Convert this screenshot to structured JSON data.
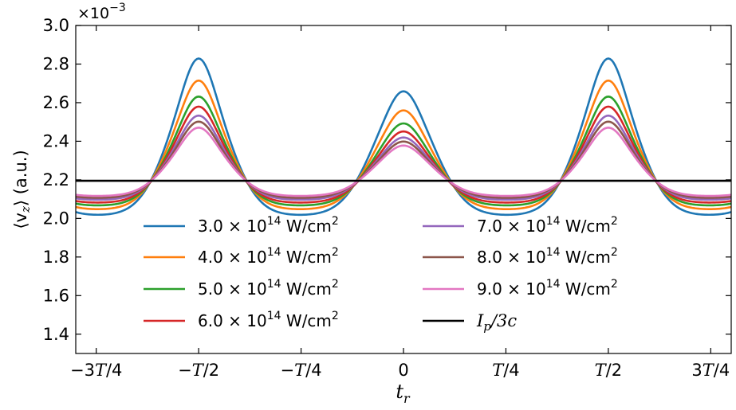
{
  "chart_data": {
    "type": "line",
    "xlabel": "t",
    "xlabel_sub": "r",
    "ylabel": "⟨v",
    "ylabel_sub": "z",
    "ylabel_suffix": "⟩ (a.u.)",
    "multiplier": "×10",
    "multiplier_exp": "−3",
    "xlim": [
      -0.8,
      0.8
    ],
    "ylim": [
      1.3,
      3.0
    ],
    "x_ticks": [
      {
        "value": -0.75,
        "label": "−3T/4"
      },
      {
        "value": -0.5,
        "label": "−T/2"
      },
      {
        "value": -0.25,
        "label": "−T/4"
      },
      {
        "value": 0,
        "label": "0"
      },
      {
        "value": 0.25,
        "label": "T/4"
      },
      {
        "value": 0.5,
        "label": "T/2"
      },
      {
        "value": 0.75,
        "label": "3T/4"
      }
    ],
    "y_ticks": [
      {
        "value": 1.4,
        "label": "1.4"
      },
      {
        "value": 1.6,
        "label": "1.6"
      },
      {
        "value": 1.8,
        "label": "1.8"
      },
      {
        "value": 2.0,
        "label": "2.0"
      },
      {
        "value": 2.2,
        "label": "2.2"
      },
      {
        "value": 2.4,
        "label": "2.4"
      },
      {
        "value": 2.6,
        "label": "2.6"
      },
      {
        "value": 2.8,
        "label": "2.8"
      },
      {
        "value": 3.0,
        "label": "3.0"
      }
    ],
    "grid": false,
    "legend_position": "lower-center",
    "baseline": {
      "name": "Ip/3c",
      "value": 2.195,
      "color": "#000000"
    },
    "series": [
      {
        "name": "3.0 × 10¹⁴ W/cm²",
        "color": "#1f77b4",
        "min": 2.015,
        "side_peak": 2.805,
        "center_peak": 2.64
      },
      {
        "name": "4.0 × 10¹⁴ W/cm²",
        "color": "#ff7f0e",
        "min": 2.045,
        "side_peak": 2.695,
        "center_peak": 2.545
      },
      {
        "name": "5.0 × 10¹⁴ W/cm²",
        "color": "#2ca02c",
        "min": 2.065,
        "side_peak": 2.615,
        "center_peak": 2.48
      },
      {
        "name": "6.0 × 10¹⁴ W/cm²",
        "color": "#d62728",
        "min": 2.08,
        "side_peak": 2.565,
        "center_peak": 2.44
      },
      {
        "name": "7.0 × 10¹⁴ W/cm²",
        "color": "#9467bd",
        "min": 2.095,
        "side_peak": 2.52,
        "center_peak": 2.41
      },
      {
        "name": "8.0 × 10¹⁴ W/cm²",
        "color": "#8c564b",
        "min": 2.105,
        "side_peak": 2.49,
        "center_peak": 2.39
      },
      {
        "name": "9.0 × 10¹⁴ W/cm²",
        "color": "#e377c2",
        "min": 2.115,
        "side_peak": 2.46,
        "center_peak": 2.37
      }
    ],
    "legend": {
      "left": [
        {
          "base": "3.0 × 10",
          "exp": "14",
          "unit": " W/cm",
          "unit_exp": "2",
          "color": "#1f77b4"
        },
        {
          "base": "4.0 × 10",
          "exp": "14",
          "unit": " W/cm",
          "unit_exp": "2",
          "color": "#ff7f0e"
        },
        {
          "base": "5.0 × 10",
          "exp": "14",
          "unit": " W/cm",
          "unit_exp": "2",
          "color": "#2ca02c"
        },
        {
          "base": "6.0 × 10",
          "exp": "14",
          "unit": " W/cm",
          "unit_exp": "2",
          "color": "#d62728"
        }
      ],
      "right": [
        {
          "base": "7.0 × 10",
          "exp": "14",
          "unit": " W/cm",
          "unit_exp": "2",
          "color": "#9467bd"
        },
        {
          "base": "8.0 × 10",
          "exp": "14",
          "unit": " W/cm",
          "unit_exp": "2",
          "color": "#8c564b"
        },
        {
          "base": "9.0 × 10",
          "exp": "14",
          "unit": " W/cm",
          "unit_exp": "2",
          "color": "#e377c2"
        }
      ],
      "baseline_label": {
        "i": "I",
        "sub": "p",
        "rest": "/3c"
      }
    }
  }
}
